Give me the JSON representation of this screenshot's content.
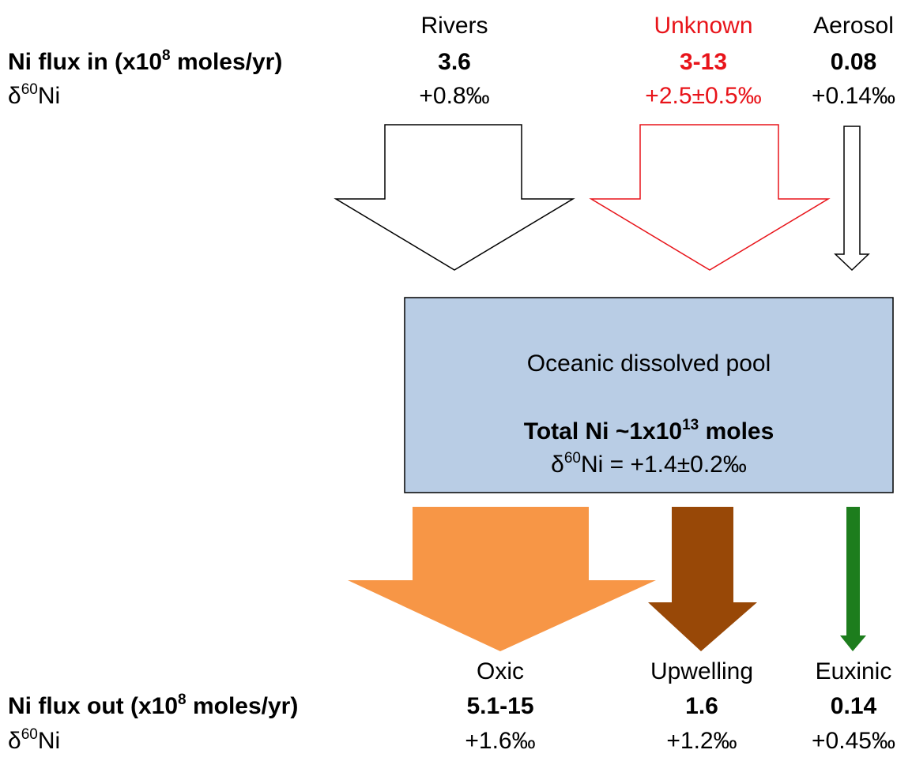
{
  "inputs": {
    "row_label": {
      "text": "Ni flux in (x10",
      "sup": "8",
      "tail": " moles/yr)"
    },
    "isotope_label": {
      "symbol": "δ",
      "sup": "60",
      "tail": "Ni"
    },
    "sources": [
      {
        "name": "Rivers",
        "flux": "3.6",
        "isotope": "+0.8‰"
      },
      {
        "name": "Unknown",
        "flux": "3-13",
        "isotope": "+2.5±0.5‰"
      },
      {
        "name": "Aerosol",
        "flux": "0.08",
        "isotope": "+0.14‰"
      }
    ]
  },
  "pool": {
    "title": "Oceanic dissolved pool",
    "total": {
      "text": "Total Ni ~1x10",
      "sup": "13",
      "tail": " moles"
    },
    "isotope": {
      "symbol": "δ",
      "sup": "60",
      "tail": "Ni = +1.4±0.2‰"
    }
  },
  "outputs": {
    "row_label": {
      "text": "Ni flux out (x10",
      "sup": "8",
      "tail": " moles/yr)"
    },
    "isotope_label": {
      "symbol": "δ",
      "sup": "60",
      "tail": "Ni"
    },
    "sinks": [
      {
        "name": "Oxic",
        "flux": "5.1-15",
        "isotope": "+1.6‰"
      },
      {
        "name": "Upwelling",
        "flux": "1.6",
        "isotope": "+1.2‰"
      },
      {
        "name": "Euxinic",
        "flux": "0.14",
        "isotope": "+0.45‰"
      }
    ]
  }
}
